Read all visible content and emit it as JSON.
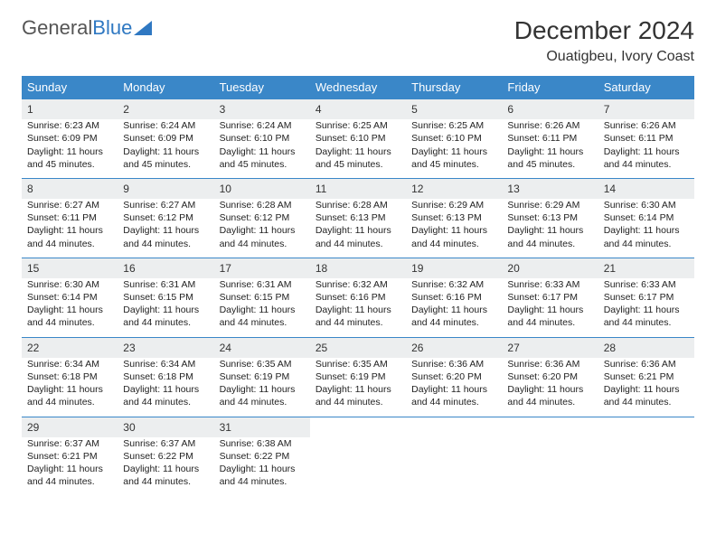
{
  "logo": {
    "text1": "General",
    "text2": "Blue"
  },
  "title": "December 2024",
  "location": "Ouatigbeu, Ivory Coast",
  "header_color": "#3a87c8",
  "daynum_bg": "#eceeef",
  "border_color": "#3a87c8",
  "text_color": "#222222",
  "weekdays": [
    "Sunday",
    "Monday",
    "Tuesday",
    "Wednesday",
    "Thursday",
    "Friday",
    "Saturday"
  ],
  "weeks": [
    [
      {
        "n": "1",
        "sr": "6:23 AM",
        "ss": "6:09 PM",
        "dl": "11 hours and 45 minutes."
      },
      {
        "n": "2",
        "sr": "6:24 AM",
        "ss": "6:09 PM",
        "dl": "11 hours and 45 minutes."
      },
      {
        "n": "3",
        "sr": "6:24 AM",
        "ss": "6:10 PM",
        "dl": "11 hours and 45 minutes."
      },
      {
        "n": "4",
        "sr": "6:25 AM",
        "ss": "6:10 PM",
        "dl": "11 hours and 45 minutes."
      },
      {
        "n": "5",
        "sr": "6:25 AM",
        "ss": "6:10 PM",
        "dl": "11 hours and 45 minutes."
      },
      {
        "n": "6",
        "sr": "6:26 AM",
        "ss": "6:11 PM",
        "dl": "11 hours and 45 minutes."
      },
      {
        "n": "7",
        "sr": "6:26 AM",
        "ss": "6:11 PM",
        "dl": "11 hours and 44 minutes."
      }
    ],
    [
      {
        "n": "8",
        "sr": "6:27 AM",
        "ss": "6:11 PM",
        "dl": "11 hours and 44 minutes."
      },
      {
        "n": "9",
        "sr": "6:27 AM",
        "ss": "6:12 PM",
        "dl": "11 hours and 44 minutes."
      },
      {
        "n": "10",
        "sr": "6:28 AM",
        "ss": "6:12 PM",
        "dl": "11 hours and 44 minutes."
      },
      {
        "n": "11",
        "sr": "6:28 AM",
        "ss": "6:13 PM",
        "dl": "11 hours and 44 minutes."
      },
      {
        "n": "12",
        "sr": "6:29 AM",
        "ss": "6:13 PM",
        "dl": "11 hours and 44 minutes."
      },
      {
        "n": "13",
        "sr": "6:29 AM",
        "ss": "6:13 PM",
        "dl": "11 hours and 44 minutes."
      },
      {
        "n": "14",
        "sr": "6:30 AM",
        "ss": "6:14 PM",
        "dl": "11 hours and 44 minutes."
      }
    ],
    [
      {
        "n": "15",
        "sr": "6:30 AM",
        "ss": "6:14 PM",
        "dl": "11 hours and 44 minutes."
      },
      {
        "n": "16",
        "sr": "6:31 AM",
        "ss": "6:15 PM",
        "dl": "11 hours and 44 minutes."
      },
      {
        "n": "17",
        "sr": "6:31 AM",
        "ss": "6:15 PM",
        "dl": "11 hours and 44 minutes."
      },
      {
        "n": "18",
        "sr": "6:32 AM",
        "ss": "6:16 PM",
        "dl": "11 hours and 44 minutes."
      },
      {
        "n": "19",
        "sr": "6:32 AM",
        "ss": "6:16 PM",
        "dl": "11 hours and 44 minutes."
      },
      {
        "n": "20",
        "sr": "6:33 AM",
        "ss": "6:17 PM",
        "dl": "11 hours and 44 minutes."
      },
      {
        "n": "21",
        "sr": "6:33 AM",
        "ss": "6:17 PM",
        "dl": "11 hours and 44 minutes."
      }
    ],
    [
      {
        "n": "22",
        "sr": "6:34 AM",
        "ss": "6:18 PM",
        "dl": "11 hours and 44 minutes."
      },
      {
        "n": "23",
        "sr": "6:34 AM",
        "ss": "6:18 PM",
        "dl": "11 hours and 44 minutes."
      },
      {
        "n": "24",
        "sr": "6:35 AM",
        "ss": "6:19 PM",
        "dl": "11 hours and 44 minutes."
      },
      {
        "n": "25",
        "sr": "6:35 AM",
        "ss": "6:19 PM",
        "dl": "11 hours and 44 minutes."
      },
      {
        "n": "26",
        "sr": "6:36 AM",
        "ss": "6:20 PM",
        "dl": "11 hours and 44 minutes."
      },
      {
        "n": "27",
        "sr": "6:36 AM",
        "ss": "6:20 PM",
        "dl": "11 hours and 44 minutes."
      },
      {
        "n": "28",
        "sr": "6:36 AM",
        "ss": "6:21 PM",
        "dl": "11 hours and 44 minutes."
      }
    ],
    [
      {
        "n": "29",
        "sr": "6:37 AM",
        "ss": "6:21 PM",
        "dl": "11 hours and 44 minutes."
      },
      {
        "n": "30",
        "sr": "6:37 AM",
        "ss": "6:22 PM",
        "dl": "11 hours and 44 minutes."
      },
      {
        "n": "31",
        "sr": "6:38 AM",
        "ss": "6:22 PM",
        "dl": "11 hours and 44 minutes."
      },
      null,
      null,
      null,
      null
    ]
  ],
  "labels": {
    "sunrise": "Sunrise:",
    "sunset": "Sunset:",
    "daylight": "Daylight:"
  }
}
